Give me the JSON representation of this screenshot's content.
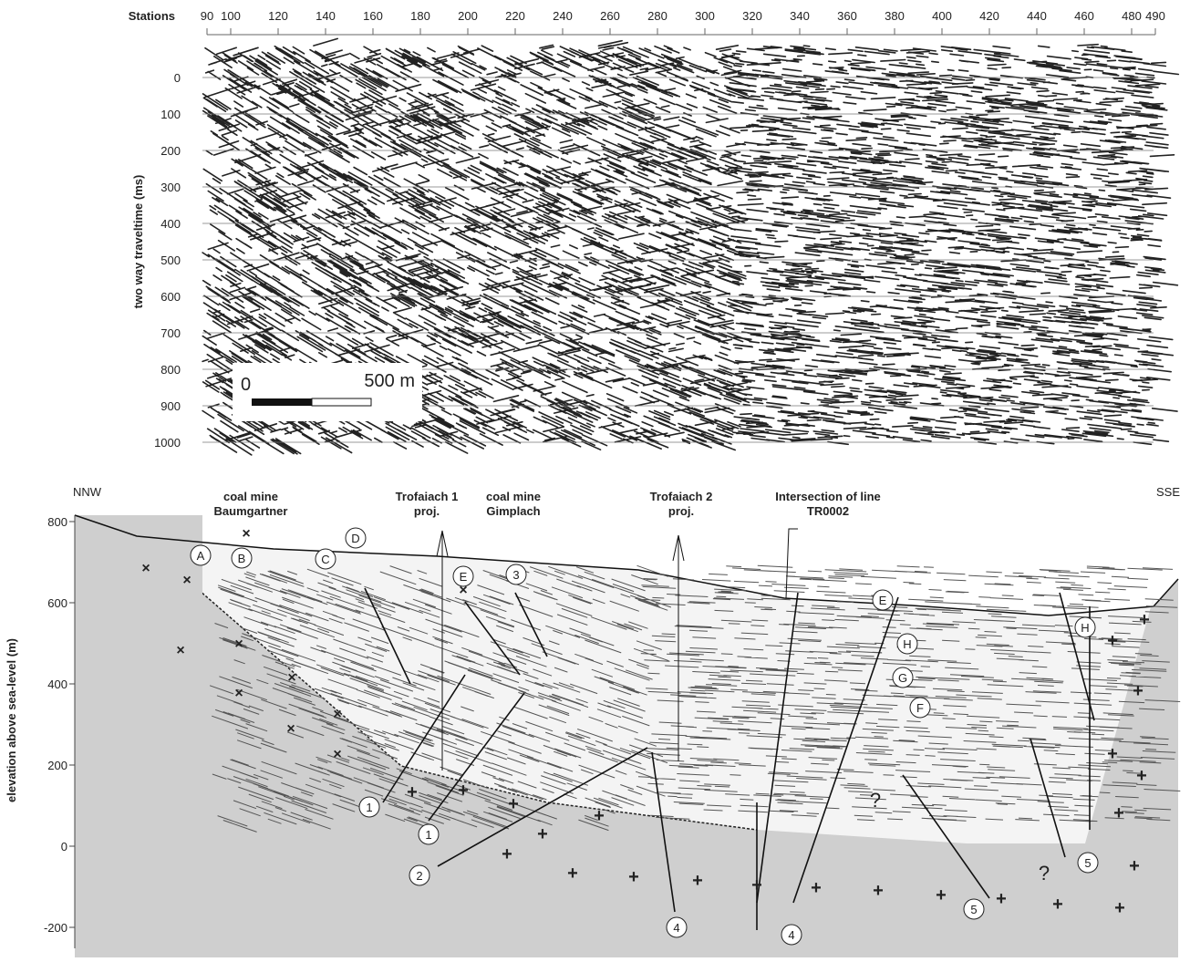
{
  "top_panel": {
    "x_axis_label": "Stations",
    "x_ticks": [
      90,
      100,
      120,
      140,
      160,
      180,
      200,
      220,
      240,
      260,
      280,
      300,
      320,
      340,
      360,
      380,
      400,
      420,
      440,
      460,
      480,
      490
    ],
    "y_axis_label": "two way traveltime (ms)",
    "y_ticks": [
      0,
      100,
      200,
      300,
      400,
      500,
      600,
      700,
      800,
      900,
      1000
    ],
    "scale_bar": {
      "start": "0",
      "end": "500 m"
    }
  },
  "bottom_panel": {
    "y_axis_label": "elevation above sea-level (m)",
    "y_ticks": [
      800,
      600,
      400,
      200,
      0,
      -200
    ],
    "left_label": "NNW",
    "right_label": "SSE",
    "annotations": [
      {
        "lines": [
          "coal mine",
          "Baumgartner"
        ]
      },
      {
        "lines": [
          "Trofaiach 1",
          "proj."
        ]
      },
      {
        "lines": [
          "coal mine",
          "Gimplach"
        ]
      },
      {
        "lines": [
          "Trofaiach 2",
          "proj."
        ]
      },
      {
        "lines": [
          "Intersection of line",
          "TR0002"
        ]
      }
    ],
    "markers": [
      "A",
      "B",
      "C",
      "D",
      "E",
      "3",
      "E",
      "H",
      "G",
      "F",
      "H",
      "1",
      "1",
      "2",
      "4",
      "4",
      "5",
      "5"
    ],
    "question_marks": [
      "?",
      "?"
    ]
  }
}
